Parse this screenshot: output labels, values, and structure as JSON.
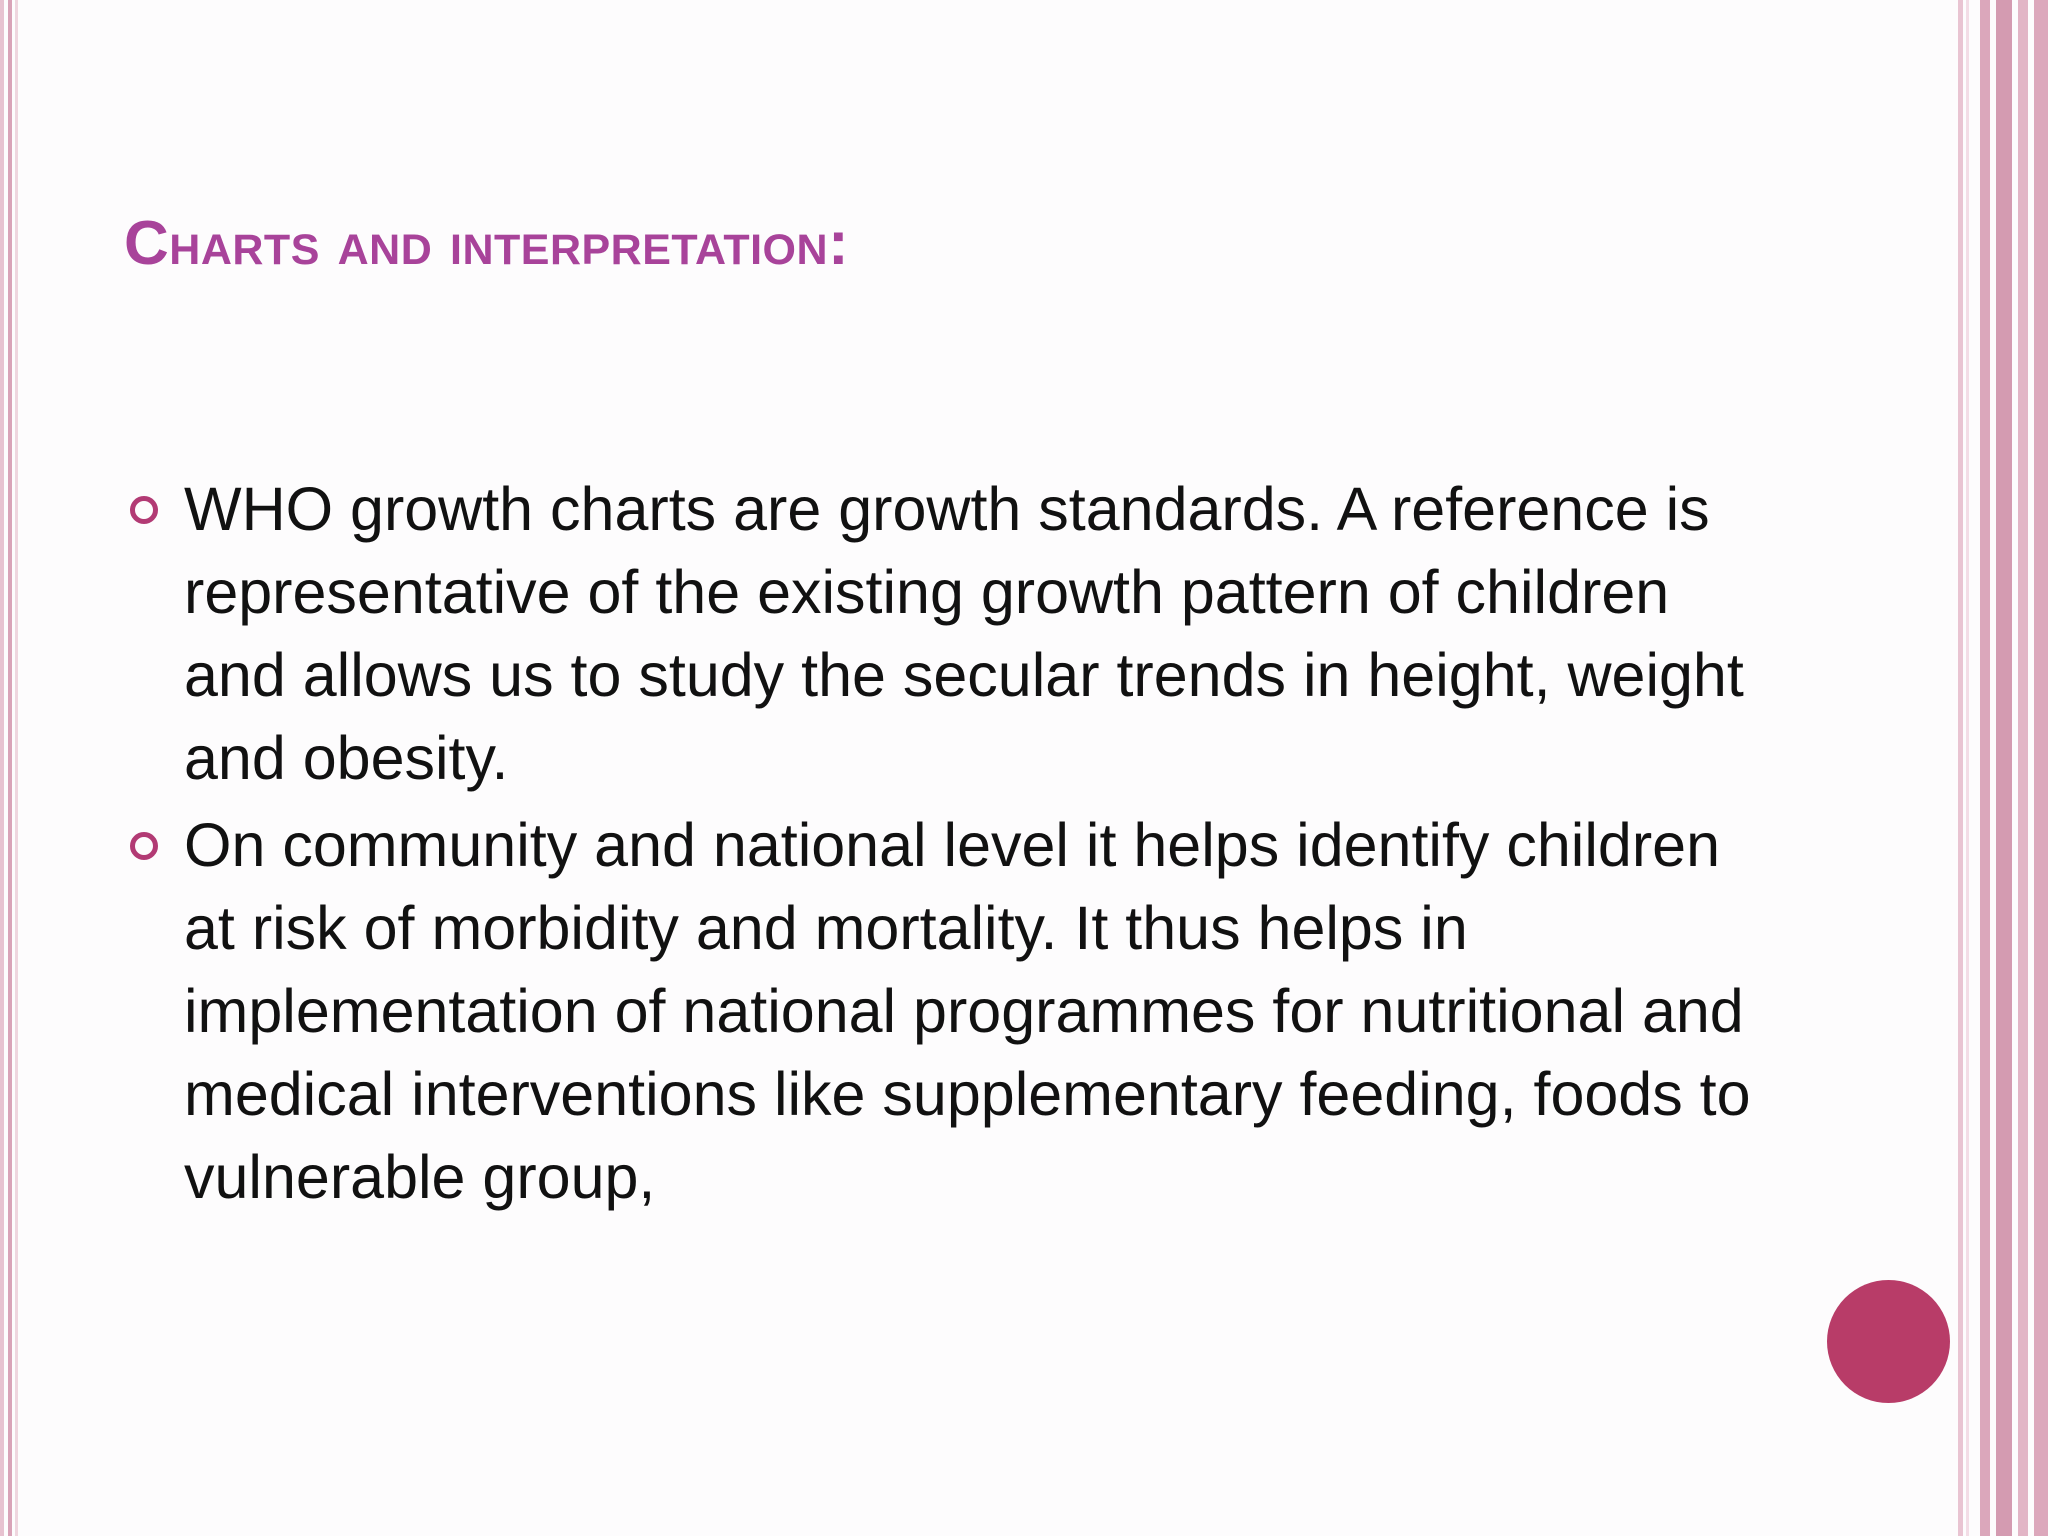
{
  "slide": {
    "title": "Charts and interpretation:",
    "bullets": [
      "WHO growth charts are growth standards. A reference is representative of the existing growth pattern of children and allows us to study the secular trends in height, weight and obesity.",
      "On community and national level it helps identify children at risk of morbidity and mortality. It thus helps in implementation of national programmes for nutritional and medical interventions like supplementary feeding, foods to vulnerable group,"
    ]
  },
  "colors": {
    "title": "#a8439a",
    "bullet_marker": "#b23a74",
    "decor_circle": "#b83c68",
    "stripes": "#d9a3b8",
    "body_text": "#111111"
  },
  "icons": {
    "bullet": "hollow-circle-bullet-icon",
    "decoration": "filled-circle"
  }
}
